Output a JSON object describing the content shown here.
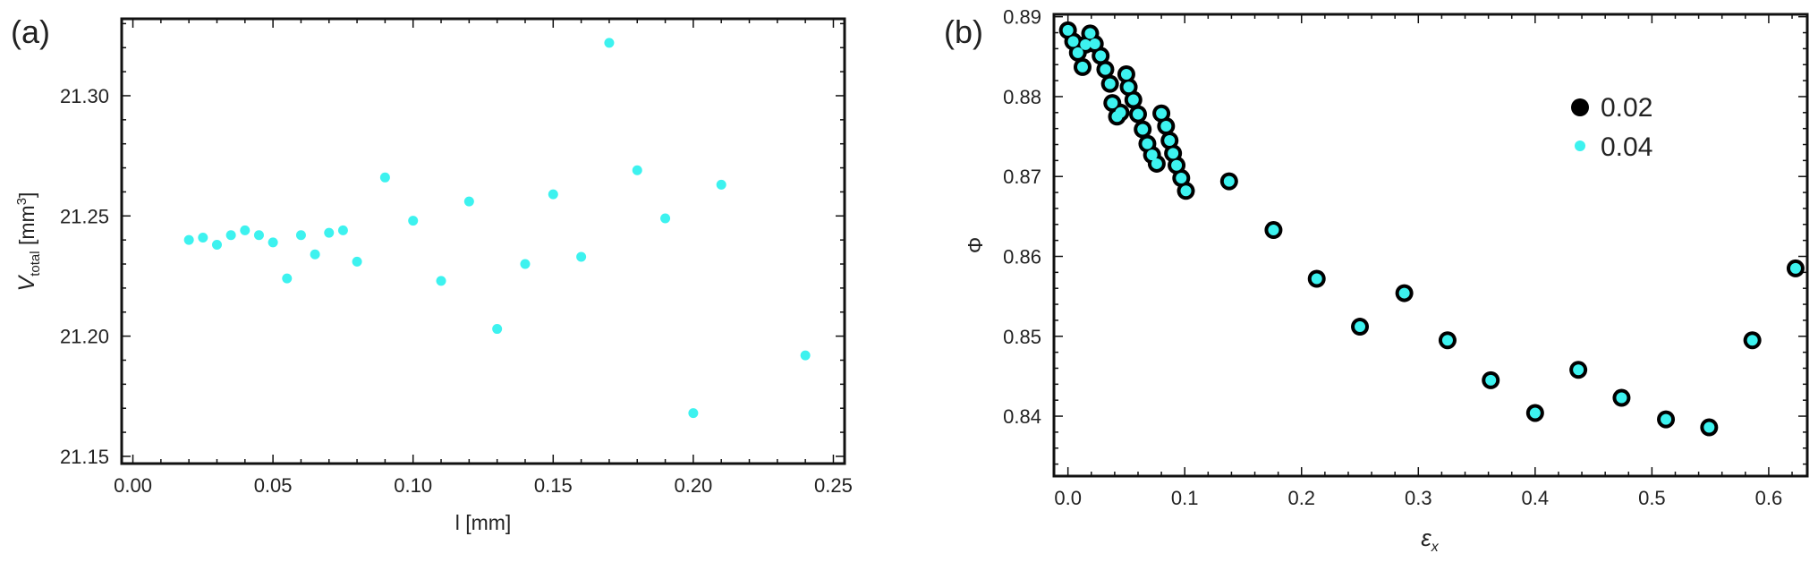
{
  "chart_data": [
    {
      "panel": "(a)",
      "type": "scatter",
      "xlabel": "l [mm]",
      "ylabel_main": "V",
      "ylabel_sub": "total",
      "ylabel_unit_open": " [mm",
      "ylabel_unit_sup": "3",
      "ylabel_unit_close": "]",
      "xlim": [
        -0.004,
        0.254
      ],
      "ylim": [
        21.147,
        21.332
      ],
      "xticks": [
        0.0,
        0.05,
        0.1,
        0.15,
        0.2,
        0.25
      ],
      "xtick_labels": [
        "0.00",
        "0.05",
        "0.10",
        "0.15",
        "0.20",
        "0.25"
      ],
      "yticks": [
        21.15,
        21.2,
        21.25,
        21.3
      ],
      "ytick_labels": [
        "21.15",
        "21.20",
        "21.25",
        "21.30"
      ],
      "grid": false,
      "color": "#3df2ef",
      "points": [
        [
          0.02,
          21.24
        ],
        [
          0.025,
          21.241
        ],
        [
          0.03,
          21.238
        ],
        [
          0.035,
          21.242
        ],
        [
          0.04,
          21.244
        ],
        [
          0.045,
          21.242
        ],
        [
          0.05,
          21.239
        ],
        [
          0.055,
          21.224
        ],
        [
          0.06,
          21.242
        ],
        [
          0.065,
          21.234
        ],
        [
          0.07,
          21.243
        ],
        [
          0.075,
          21.244
        ],
        [
          0.08,
          21.231
        ],
        [
          0.09,
          21.266
        ],
        [
          0.1,
          21.248
        ],
        [
          0.11,
          21.223
        ],
        [
          0.12,
          21.256
        ],
        [
          0.13,
          21.203
        ],
        [
          0.14,
          21.23
        ],
        [
          0.15,
          21.259
        ],
        [
          0.16,
          21.233
        ],
        [
          0.17,
          21.322
        ],
        [
          0.18,
          21.269
        ],
        [
          0.19,
          21.249
        ],
        [
          0.2,
          21.168
        ],
        [
          0.21,
          21.263
        ],
        [
          0.24,
          21.192
        ]
      ]
    },
    {
      "panel": "(b)",
      "type": "scatter",
      "xlabel_main": "ε",
      "xlabel_sub": "x",
      "ylabel": "Φ",
      "xlim": [
        -0.012,
        0.633
      ],
      "ylim": [
        0.8325,
        0.8903
      ],
      "xticks": [
        0.0,
        0.1,
        0.2,
        0.3,
        0.4,
        0.5,
        0.6
      ],
      "xtick_labels": [
        "0.0",
        "0.1",
        "0.2",
        "0.3",
        "0.4",
        "0.5",
        "0.6"
      ],
      "yticks": [
        0.84,
        0.85,
        0.86,
        0.87,
        0.88,
        0.89
      ],
      "ytick_labels": [
        "0.84",
        "0.85",
        "0.86",
        "0.87",
        "0.88",
        "0.89"
      ],
      "grid": false,
      "legend_position": "top-right",
      "series": [
        {
          "name": "0.02",
          "color": "#000000",
          "points": [
            [
              0.0,
              0.8883
            ],
            [
              0.0045,
              0.8869
            ],
            [
              0.0085,
              0.8855
            ],
            [
              0.0125,
              0.8837
            ],
            [
              0.015,
              0.8865
            ],
            [
              0.019,
              0.8879
            ],
            [
              0.023,
              0.8866
            ],
            [
              0.028,
              0.8851
            ],
            [
              0.032,
              0.8834
            ],
            [
              0.036,
              0.8816
            ],
            [
              0.038,
              0.8792
            ],
            [
              0.042,
              0.8775
            ],
            [
              0.045,
              0.878
            ],
            [
              0.05,
              0.8828
            ],
            [
              0.052,
              0.8812
            ],
            [
              0.056,
              0.8796
            ],
            [
              0.06,
              0.8778
            ],
            [
              0.064,
              0.8759
            ],
            [
              0.068,
              0.8741
            ],
            [
              0.072,
              0.8727
            ],
            [
              0.076,
              0.8716
            ],
            [
              0.08,
              0.8779
            ],
            [
              0.084,
              0.8763
            ],
            [
              0.087,
              0.8745
            ],
            [
              0.09,
              0.8729
            ],
            [
              0.093,
              0.8714
            ],
            [
              0.097,
              0.8698
            ],
            [
              0.101,
              0.8682
            ],
            [
              0.138,
              0.8694
            ],
            [
              0.176,
              0.8633
            ],
            [
              0.213,
              0.8572
            ],
            [
              0.25,
              0.8512
            ],
            [
              0.288,
              0.8554
            ],
            [
              0.325,
              0.8495
            ],
            [
              0.362,
              0.8445
            ],
            [
              0.4,
              0.8404
            ],
            [
              0.437,
              0.8458
            ],
            [
              0.474,
              0.8423
            ],
            [
              0.512,
              0.8396
            ],
            [
              0.549,
              0.8386
            ],
            [
              0.586,
              0.8495
            ],
            [
              0.623,
              0.8585
            ]
          ]
        },
        {
          "name": "0.04",
          "color": "#3df2ef",
          "points": [
            [
              0.0,
              0.8883
            ],
            [
              0.0045,
              0.8869
            ],
            [
              0.0085,
              0.8855
            ],
            [
              0.0125,
              0.8837
            ],
            [
              0.015,
              0.8865
            ],
            [
              0.019,
              0.8879
            ],
            [
              0.023,
              0.8866
            ],
            [
              0.028,
              0.8851
            ],
            [
              0.032,
              0.8834
            ],
            [
              0.036,
              0.8816
            ],
            [
              0.038,
              0.8792
            ],
            [
              0.042,
              0.8775
            ],
            [
              0.045,
              0.878
            ],
            [
              0.05,
              0.8828
            ],
            [
              0.052,
              0.8812
            ],
            [
              0.056,
              0.8796
            ],
            [
              0.06,
              0.8778
            ],
            [
              0.064,
              0.8759
            ],
            [
              0.068,
              0.8741
            ],
            [
              0.072,
              0.8727
            ],
            [
              0.076,
              0.8716
            ],
            [
              0.08,
              0.8779
            ],
            [
              0.084,
              0.8763
            ],
            [
              0.087,
              0.8745
            ],
            [
              0.09,
              0.8729
            ],
            [
              0.093,
              0.8714
            ],
            [
              0.097,
              0.8698
            ],
            [
              0.101,
              0.8682
            ],
            [
              0.138,
              0.8694
            ],
            [
              0.176,
              0.8633
            ],
            [
              0.213,
              0.8572
            ],
            [
              0.25,
              0.8512
            ],
            [
              0.288,
              0.8554
            ],
            [
              0.325,
              0.8495
            ],
            [
              0.362,
              0.8445
            ],
            [
              0.4,
              0.8404
            ],
            [
              0.437,
              0.8458
            ],
            [
              0.474,
              0.8423
            ],
            [
              0.512,
              0.8396
            ],
            [
              0.549,
              0.8386
            ],
            [
              0.586,
              0.8495
            ],
            [
              0.623,
              0.8585
            ]
          ]
        }
      ]
    }
  ]
}
